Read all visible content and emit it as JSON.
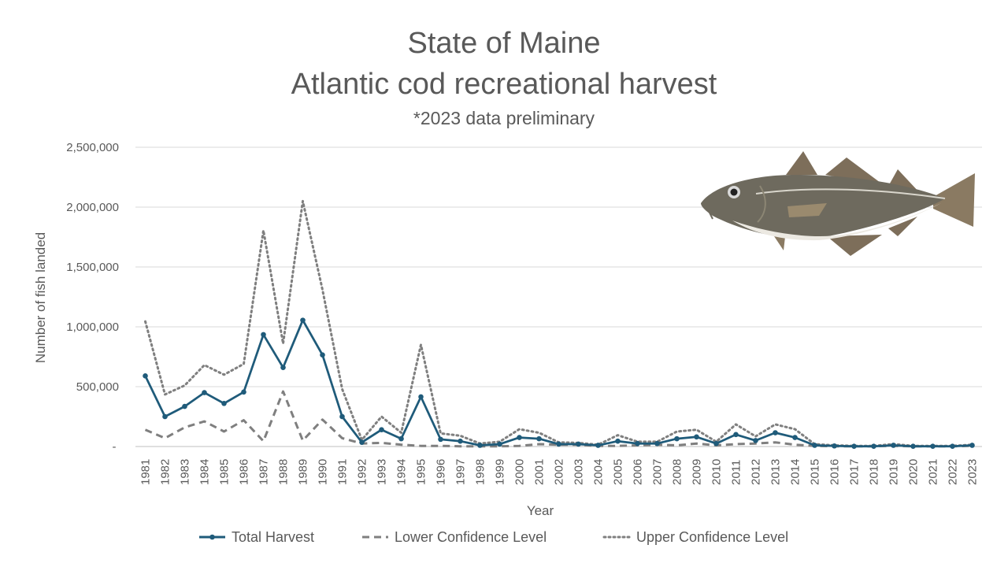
{
  "chart_data": {
    "type": "line",
    "title": [
      "State of Maine",
      "Atlantic cod recreational harvest"
    ],
    "subtitle": "*2023 data preliminary",
    "xlabel": "Year",
    "ylabel": "Number of fish landed",
    "ylim": [
      0,
      2500000
    ],
    "yticks": [
      {
        "value": 0,
        "label": "-"
      },
      {
        "value": 500000,
        "label": "500,000"
      },
      {
        "value": 1000000,
        "label": "1,000,000"
      },
      {
        "value": 1500000,
        "label": "1,500,000"
      },
      {
        "value": 2000000,
        "label": "2,000,000"
      },
      {
        "value": 2500000,
        "label": "2,500,000"
      }
    ],
    "grid": true,
    "legend": "bottom",
    "x": [
      "1981",
      "1982",
      "1983",
      "1984",
      "1985",
      "1986",
      "1987",
      "1988",
      "1989",
      "1990",
      "1991",
      "1992",
      "1993",
      "1994",
      "1995",
      "1996",
      "1997",
      "1998",
      "1999",
      "2000",
      "2001",
      "2002",
      "2003",
      "2004",
      "2005",
      "2006",
      "2007",
      "2008",
      "2009",
      "2010",
      "2011",
      "2012",
      "2013",
      "2014",
      "2015",
      "2016",
      "2017",
      "2018",
      "2019",
      "2020",
      "2021",
      "2022",
      "2023"
    ],
    "series": [
      {
        "name": "Total Harvest",
        "color": "#1f5b7a",
        "style": "solid-markers",
        "values": [
          590000,
          250000,
          335000,
          450000,
          360000,
          455000,
          935000,
          660000,
          1055000,
          765000,
          250000,
          35000,
          140000,
          65000,
          415000,
          60000,
          45000,
          10000,
          20000,
          75000,
          65000,
          20000,
          20000,
          10000,
          45000,
          25000,
          25000,
          65000,
          80000,
          25000,
          100000,
          50000,
          115000,
          75000,
          10000,
          5000,
          2000,
          2000,
          10000,
          2000,
          2000,
          2000,
          10000
        ]
      },
      {
        "name": "Lower Confidence Level",
        "color": "#7f7f7f",
        "style": "dashed",
        "values": [
          140000,
          70000,
          160000,
          210000,
          125000,
          220000,
          45000,
          460000,
          50000,
          225000,
          70000,
          25000,
          30000,
          15000,
          5000,
          5000,
          2000,
          2000,
          2000,
          5000,
          20000,
          15000,
          15000,
          5000,
          5000,
          10000,
          15000,
          10000,
          25000,
          10000,
          20000,
          25000,
          35000,
          15000,
          5000,
          2000,
          2000,
          2000,
          5000,
          2000,
          2000,
          2000,
          5000
        ]
      },
      {
        "name": "Upper Confidence Level",
        "color": "#7f7f7f",
        "style": "dotted",
        "values": [
          1045000,
          435000,
          510000,
          680000,
          600000,
          690000,
          1805000,
          860000,
          2050000,
          1310000,
          480000,
          55000,
          250000,
          115000,
          850000,
          110000,
          90000,
          25000,
          40000,
          145000,
          115000,
          35000,
          30000,
          15000,
          95000,
          40000,
          40000,
          125000,
          140000,
          40000,
          185000,
          85000,
          185000,
          145000,
          20000,
          10000,
          5000,
          5000,
          20000,
          5000,
          5000,
          5000,
          15000
        ]
      }
    ]
  },
  "image": {
    "name": "atlantic-cod-illustration"
  }
}
